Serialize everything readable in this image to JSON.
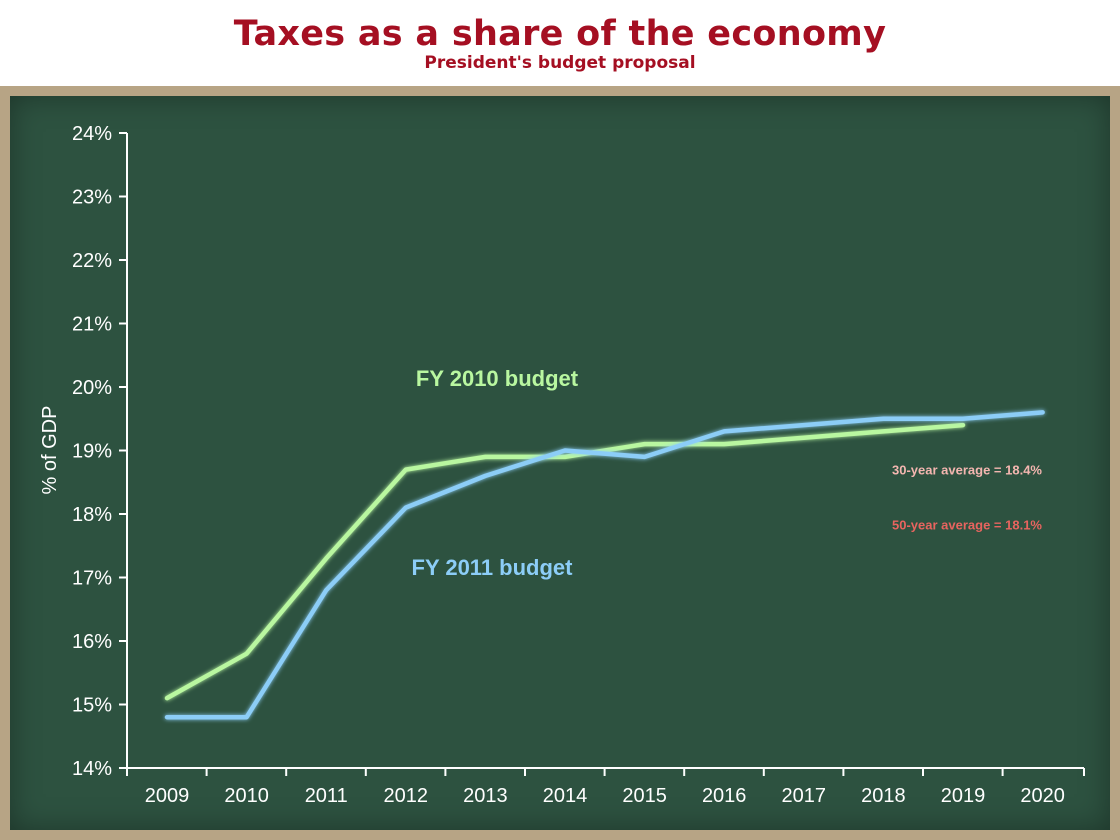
{
  "chart_data": {
    "type": "line",
    "title": "Taxes as a share of the economy",
    "subtitle": "President's budget proposal",
    "ylabel": "% of GDP",
    "xlabel": "",
    "ylim": [
      14,
      24
    ],
    "y_ticks": [
      "14%",
      "15%",
      "16%",
      "17%",
      "18%",
      "19%",
      "20%",
      "21%",
      "22%",
      "23%",
      "24%"
    ],
    "categories": [
      "2009",
      "2010",
      "2011",
      "2012",
      "2013",
      "2014",
      "2015",
      "2016",
      "2017",
      "2018",
      "2019",
      "2020"
    ],
    "series": [
      {
        "name": "FY 2010 budget",
        "color": "#b9f7a0",
        "x": [
          2009,
          2010,
          2011,
          2012,
          2012.5,
          2013,
          2014,
          2015,
          2016,
          2017,
          2018,
          2019
        ],
        "values": [
          15.1,
          15.8,
          17.3,
          18.7,
          18.8,
          18.9,
          18.9,
          19.1,
          19.1,
          19.2,
          19.3,
          19.4
        ]
      },
      {
        "name": "FY 2011 budget",
        "color": "#8ccdf7",
        "x": [
          2009,
          2010,
          2011,
          2012,
          2013,
          2014,
          2015,
          2016,
          2017,
          2018,
          2019,
          2020
        ],
        "values": [
          14.8,
          14.8,
          16.8,
          18.1,
          18.6,
          19.0,
          18.9,
          19.3,
          19.4,
          19.5,
          19.5,
          19.6
        ]
      }
    ],
    "reference_lines": [
      {
        "label": "30-year average = 18.4%",
        "value": 18.4,
        "color": "#f4b6b0"
      },
      {
        "label": "50-year average = 18.1%",
        "value": 18.1,
        "color": "#e8645f"
      }
    ],
    "grid": false,
    "legend": "inline labels"
  }
}
